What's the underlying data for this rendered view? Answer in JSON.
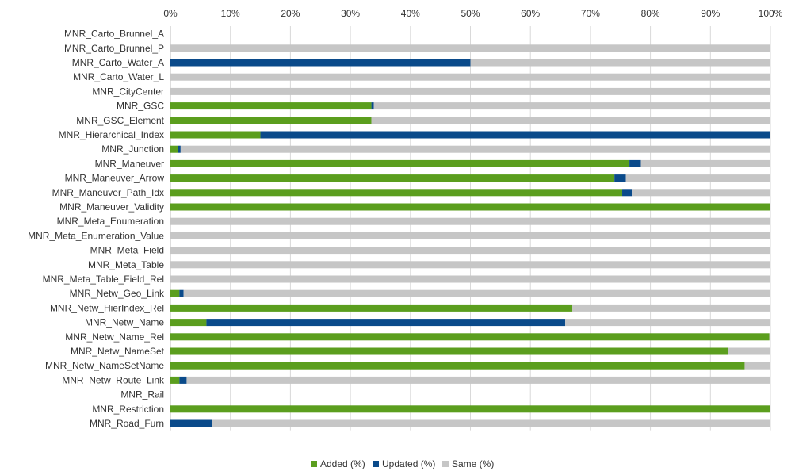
{
  "chart_data": {
    "type": "bar",
    "orientation": "horizontal",
    "stacked": true,
    "title": "",
    "xlabel": "",
    "ylabel": "",
    "xlim": [
      0,
      100
    ],
    "x_ticks": [
      "0%",
      "10%",
      "20%",
      "30%",
      "40%",
      "50%",
      "60%",
      "70%",
      "80%",
      "90%",
      "100%"
    ],
    "x_axis_position": "top",
    "grid": true,
    "legend_position": "bottom",
    "categories": [
      "MNR_Carto_Brunnel_A",
      "MNR_Carto_Brunnel_P",
      "MNR_Carto_Water_A",
      "MNR_Carto_Water_L",
      "MNR_CityCenter",
      "MNR_GSC",
      "MNR_GSC_Element",
      "MNR_Hierarchical_Index",
      "MNR_Junction",
      "MNR_Maneuver",
      "MNR_Maneuver_Arrow",
      "MNR_Maneuver_Path_Idx",
      "MNR_Maneuver_Validity",
      "MNR_Meta_Enumeration",
      "MNR_Meta_Enumeration_Value",
      "MNR_Meta_Field",
      "MNR_Meta_Table",
      "MNR_Meta_Table_Field_Rel",
      "MNR_Netw_Geo_Link",
      "MNR_Netw_HierIndex_Rel",
      "MNR_Netw_Name",
      "MNR_Netw_Name_Rel",
      "MNR_Netw_NameSet",
      "MNR_Netw_NameSetName",
      "MNR_Netw_Route_Link",
      "MNR_Rail",
      "MNR_Restriction",
      "MNR_Road_Furn"
    ],
    "series": [
      {
        "name": "Added (%)",
        "color": "#5b9e1e",
        "values": [
          0,
          0,
          0,
          0,
          0,
          33.5,
          33.5,
          15,
          1.3,
          76.5,
          74,
          75.3,
          100,
          0,
          0,
          0,
          0,
          0,
          1.5,
          67,
          6,
          99.8,
          93,
          95.7,
          1.5,
          0,
          100,
          0
        ]
      },
      {
        "name": "Updated (%)",
        "color": "#0a4a8a",
        "values": [
          0,
          0,
          50,
          0,
          0,
          0.4,
          0,
          85,
          0.4,
          1.9,
          1.9,
          1.6,
          0,
          0,
          0,
          0,
          0,
          0,
          0.7,
          0,
          59.8,
          0,
          0,
          0,
          1.2,
          0,
          0,
          7
        ]
      },
      {
        "name": "Same (%)",
        "color": "#c6c6c6",
        "values": [
          0,
          100,
          50,
          100,
          100,
          66.1,
          66.5,
          0,
          98.3,
          21.6,
          24.1,
          23.1,
          0,
          100,
          100,
          100,
          100,
          100,
          97.8,
          33,
          34.2,
          0.2,
          7,
          4.3,
          97.3,
          0,
          0,
          93
        ]
      }
    ]
  }
}
